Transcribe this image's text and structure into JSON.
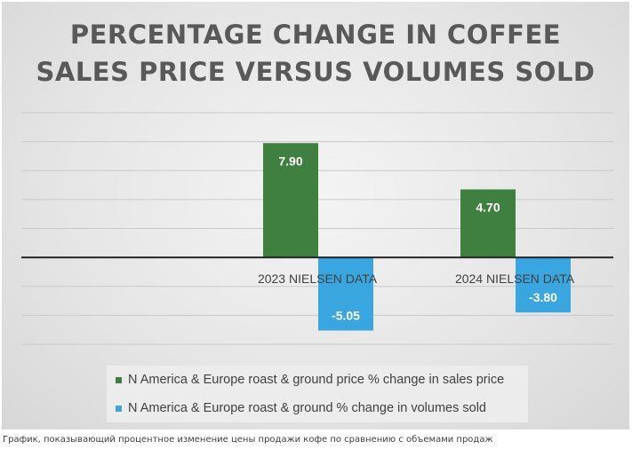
{
  "colors": {
    "price": "#3f7f3f",
    "volume": "#39a6df",
    "gridline": "#c9c9c9",
    "axis": "#262626"
  },
  "chart_data": {
    "type": "bar",
    "title_lines": [
      "PERCENTAGE CHANGE IN COFFEE",
      "SALES PRICE VERSUS VOLUMES SOLD"
    ],
    "categories": [
      "",
      "2023 NIELSEN DATA",
      "2024 NIELSEN DATA"
    ],
    "series": [
      {
        "name": "N America & Europe roast & ground price % change in sales price",
        "values": [
          null,
          7.9,
          4.7
        ],
        "labels": [
          "",
          "7.90",
          "4.70"
        ]
      },
      {
        "name": "N America & Europe roast & ground % change in volumes sold",
        "values": [
          null,
          -5.05,
          -3.8
        ],
        "labels": [
          "",
          "-5.05",
          "-3.80"
        ]
      }
    ],
    "ylim": [
      -6,
      10
    ],
    "ytick_step": 2,
    "grid": true,
    "legend_position": "bottom",
    "xlabel": "",
    "ylabel": ""
  },
  "caption": "График, показывающий процентное изменение цены продажи кофе по сравнению с объемами продаж"
}
